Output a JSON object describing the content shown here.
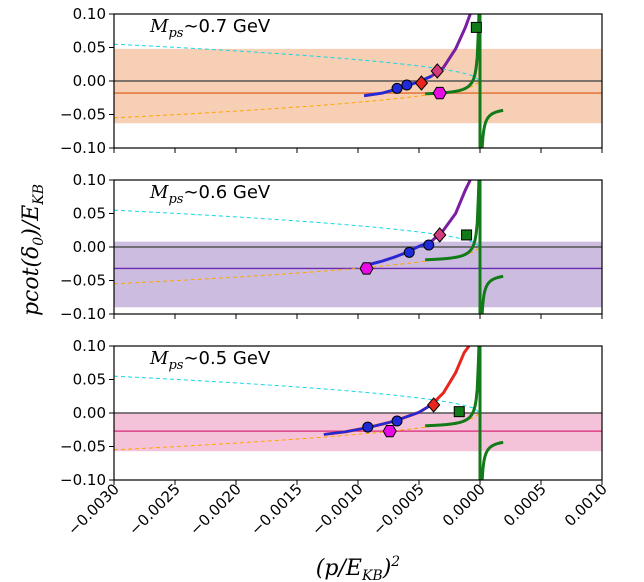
{
  "chart_data": [
    {
      "type": "line",
      "annotation": {
        "mass_symbol": "M",
        "mass_sub": "ps",
        "mass_value": "∼0.7",
        "mass_unit": "GeV"
      },
      "ylim": [
        -0.1,
        0.1
      ],
      "xlim": [
        -0.003,
        0.001
      ],
      "band": {
        "center": -0.018,
        "low": -0.063,
        "high": 0.048,
        "color": "#f4c7a7",
        "line_color": "#e06b2d"
      },
      "fit_curve": {
        "color": "#7a1fa2",
        "x": [
          -0.00095,
          -0.0008,
          -0.0007,
          -0.0006,
          -0.0005,
          -0.0004,
          -0.0003,
          -0.0002,
          -0.00012,
          -8e-05
        ],
        "y": [
          -0.022,
          -0.018,
          -0.013,
          -0.007,
          -0.001,
          0.007,
          0.02,
          0.048,
          0.08,
          0.1
        ]
      },
      "points": [
        {
          "marker": "circle",
          "color": "#1f2bd6",
          "x": -0.00068,
          "y": -0.011
        },
        {
          "marker": "circle",
          "color": "#1f2bd6",
          "x": -0.0006,
          "y": -0.006
        },
        {
          "marker": "diamond",
          "color": "#e8261d",
          "x": -0.00048,
          "y": -0.003
        },
        {
          "marker": "diamond",
          "color": "#d43b7a",
          "x": -0.00035,
          "y": 0.015
        },
        {
          "marker": "hexagon",
          "color": "#e90be6",
          "x": -0.00033,
          "y": -0.018
        },
        {
          "marker": "square",
          "color": "#137a19",
          "x": -3e-05,
          "y": 0.08
        }
      ]
    },
    {
      "type": "line",
      "annotation": {
        "mass_symbol": "M",
        "mass_sub": "ps",
        "mass_value": "∼0.6",
        "mass_unit": "GeV"
      },
      "ylim": [
        -0.1,
        0.1
      ],
      "xlim": [
        -0.003,
        0.001
      ],
      "band": {
        "center": -0.032,
        "low": -0.09,
        "high": 0.008,
        "color": "#c3b2da",
        "line_color": "#6a2ab0"
      },
      "fit_curve": {
        "color": "#7a1fa2",
        "x": [
          -0.00095,
          -0.0008,
          -0.0007,
          -0.0006,
          -0.0005,
          -0.0004,
          -0.0003,
          -0.0002,
          -0.00012,
          -8e-05
        ],
        "y": [
          -0.028,
          -0.021,
          -0.015,
          -0.008,
          0.001,
          0.008,
          0.025,
          0.05,
          0.085,
          0.1
        ]
      },
      "points": [
        {
          "marker": "circle",
          "color": "#1f2bd6",
          "x": -0.00058,
          "y": -0.008
        },
        {
          "marker": "circle",
          "color": "#1f2bd6",
          "x": -0.00042,
          "y": 0.003
        },
        {
          "marker": "diamond",
          "color": "#d43b7a",
          "x": -0.00033,
          "y": 0.018
        },
        {
          "marker": "hexagon",
          "color": "#e90be6",
          "x": -0.00093,
          "y": -0.032
        },
        {
          "marker": "square",
          "color": "#137a19",
          "x": -0.00011,
          "y": 0.018
        }
      ]
    },
    {
      "type": "line",
      "annotation": {
        "mass_symbol": "M",
        "mass_sub": "ps",
        "mass_value": "∼0.5",
        "mass_unit": "GeV"
      },
      "ylim": [
        -0.1,
        0.1
      ],
      "xlim": [
        -0.003,
        0.001
      ],
      "band": {
        "center": -0.027,
        "low": -0.057,
        "high": 0.0,
        "color": "#f2b8d2",
        "line_color": "#d82a79"
      },
      "fit_curve": {
        "color": "#e8261d",
        "x": [
          -0.00128,
          -0.0011,
          -0.0009,
          -0.0007,
          -0.0005,
          -0.0004,
          -0.0003,
          -0.0002,
          -0.00013,
          -9e-05
        ],
        "y": [
          -0.032,
          -0.028,
          -0.021,
          -0.012,
          0.001,
          0.012,
          0.03,
          0.06,
          0.09,
          0.1
        ]
      },
      "points": [
        {
          "marker": "circle",
          "color": "#1f2bd6",
          "x": -0.00092,
          "y": -0.021
        },
        {
          "marker": "circle",
          "color": "#1f2bd6",
          "x": -0.00068,
          "y": -0.012
        },
        {
          "marker": "diamond",
          "color": "#e8261d",
          "x": -0.00038,
          "y": 0.012
        },
        {
          "marker": "hexagon",
          "color": "#e90be6",
          "x": -0.00074,
          "y": -0.027
        },
        {
          "marker": "square",
          "color": "#137a19",
          "x": -0.00017,
          "y": 0.002
        }
      ]
    }
  ],
  "shared": {
    "ylabel": "pcot(δ₀)/E_KB",
    "xlabel": "(p/E_KB)²",
    "yticks": [
      0.1,
      0.05,
      0.0,
      -0.05,
      -0.1
    ],
    "ytick_labels": [
      "0.10",
      "0.05",
      "0.00",
      "−0.05",
      "−0.10"
    ],
    "xticks": [
      -0.003,
      -0.0025,
      -0.002,
      -0.0015,
      -0.001,
      -0.0005,
      0.0,
      0.0005,
      0.001
    ],
    "xtick_labels": [
      "−0.0030",
      "−0.0025",
      "−0.0020",
      "−0.0015",
      "−0.0010",
      "−0.0005",
      "0.0000",
      "0.0005",
      "0.0010"
    ],
    "colors": {
      "cyan_dashed": "#17d5e6",
      "orange_dashed": "#ffa500",
      "green_curve": "#137a19",
      "zero_line": "#555555",
      "blue_fit": "#1f2bd6"
    },
    "ylabel_parts": {
      "main": "pcot(δ",
      "sub0": "0",
      "mid": ")/E",
      "sub1": "KB"
    },
    "xlabel_parts": {
      "main": "(p/E",
      "sub": "KB",
      "tail": ")",
      "sup": "2"
    }
  }
}
